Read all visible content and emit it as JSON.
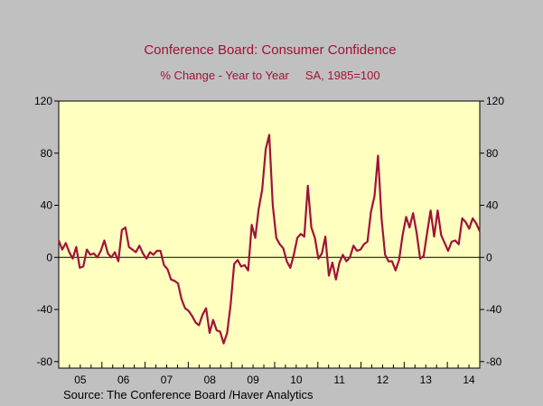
{
  "chart_data": {
    "type": "line",
    "title": "Conference Board: Consumer Confidence",
    "subtitle": "% Change - Year to Year     SA, 1985=100",
    "source": "Source:  The Conference Board /Haver Analytics",
    "ylim": [
      -85,
      120
    ],
    "y_ticks": [
      {
        "value": 120,
        "label": "120"
      },
      {
        "value": 80,
        "label": "80"
      },
      {
        "value": 40,
        "label": "40"
      },
      {
        "value": 0,
        "label": "0"
      },
      {
        "value": -40,
        "label": "-40"
      },
      {
        "value": -80,
        "label": "-80"
      }
    ],
    "x_labels": [
      "05",
      "06",
      "07",
      "08",
      "09",
      "10",
      "11",
      "12",
      "13",
      "14"
    ],
    "x_start": 2005.0,
    "x_end": 2014.75,
    "zero_line": true,
    "colors": {
      "background": "#c0c0c0",
      "plot_area": "#ffffc0",
      "line": "#a01238",
      "title": "#a01238"
    },
    "series": [
      {
        "values": [
          13,
          6,
          11,
          4,
          -1,
          8,
          -8,
          -7,
          6,
          2,
          3,
          0,
          5,
          13,
          3,
          0,
          4,
          -3,
          21,
          23,
          8,
          6,
          4,
          9,
          3,
          -1,
          4,
          2,
          5,
          5,
          -6,
          -9,
          -17,
          -18,
          -20,
          -32,
          -39,
          -41,
          -45,
          -50,
          -52,
          -44,
          -39,
          -58,
          -48,
          -56,
          -57,
          -66,
          -58,
          -36,
          -5,
          -2,
          -7,
          -6,
          -10,
          25,
          15,
          37,
          52,
          83,
          94,
          40,
          15,
          10,
          7,
          -3,
          -8,
          2,
          15,
          18,
          16,
          55,
          23,
          15,
          -1,
          3,
          16,
          -14,
          -4,
          -17,
          -4,
          2,
          -3,
          0,
          9,
          5,
          6,
          10,
          12,
          35,
          47,
          78,
          30,
          2,
          -3,
          -3,
          -10,
          -2,
          17,
          31,
          23,
          34,
          19,
          -1,
          1,
          19,
          36,
          16,
          36,
          17,
          11,
          5,
          12,
          13,
          10,
          30,
          27,
          22,
          30,
          26,
          20
        ]
      }
    ]
  }
}
